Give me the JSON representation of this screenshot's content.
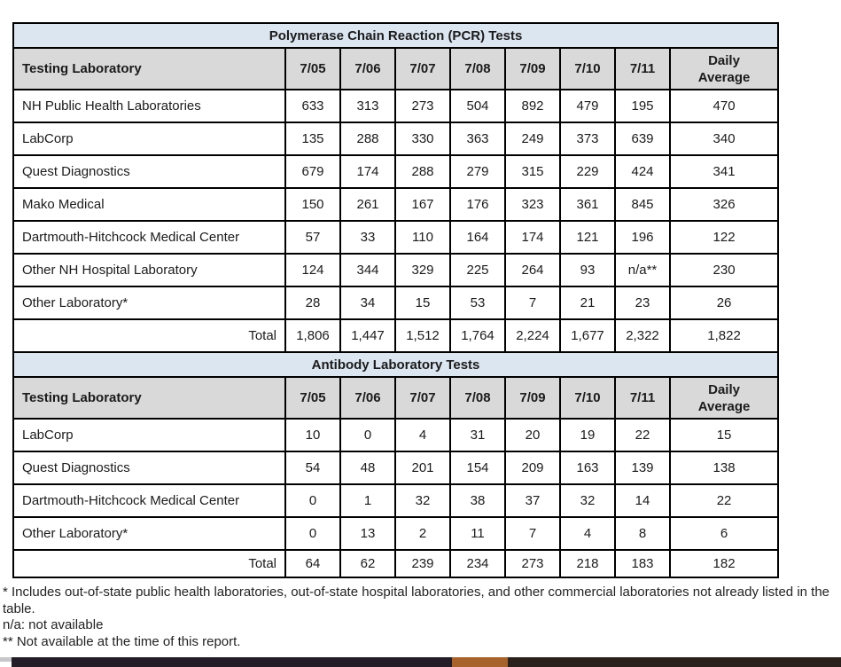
{
  "colors": {
    "title_row_bg": "#dce6f1",
    "header_row_bg": "#d9d9d9",
    "table_border": "#000000",
    "bar_dark_left": "#241c26",
    "bar_accent_orange": "#a8622c",
    "bar_dark_right": "#2a211c"
  },
  "tables": [
    {
      "title": "Polymerase Chain Reaction (PCR) Tests",
      "header": {
        "label": "Testing Laboratory",
        "dates": [
          "7/05",
          "7/06",
          "7/07",
          "7/08",
          "7/09",
          "7/10",
          "7/11"
        ],
        "average": "Daily\nAverage"
      },
      "rows": [
        {
          "label": "NH Public Health Laboratories",
          "values": [
            "633",
            "313",
            "273",
            "504",
            "892",
            "479",
            "195",
            "470"
          ]
        },
        {
          "label": "LabCorp",
          "values": [
            "135",
            "288",
            "330",
            "363",
            "249",
            "373",
            "639",
            "340"
          ]
        },
        {
          "label": "Quest Diagnostics",
          "values": [
            "679",
            "174",
            "288",
            "279",
            "315",
            "229",
            "424",
            "341"
          ]
        },
        {
          "label": "Mako Medical",
          "values": [
            "150",
            "261",
            "167",
            "176",
            "323",
            "361",
            "845",
            "326"
          ]
        },
        {
          "label": "Dartmouth-Hitchcock Medical Center",
          "values": [
            "57",
            "33",
            "110",
            "164",
            "174",
            "121",
            "196",
            "122"
          ]
        },
        {
          "label": "Other NH Hospital Laboratory",
          "values": [
            "124",
            "344",
            "329",
            "225",
            "264",
            "93",
            "n/a**",
            "230"
          ]
        },
        {
          "label": "Other Laboratory*",
          "values": [
            "28",
            "34",
            "15",
            "53",
            "7",
            "21",
            "23",
            "26"
          ]
        }
      ],
      "total": {
        "label": "Total",
        "values": [
          "1,806",
          "1,447",
          "1,512",
          "1,764",
          "2,224",
          "1,677",
          "2,322",
          "1,822"
        ]
      }
    },
    {
      "title": "Antibody Laboratory Tests",
      "header": {
        "label": "Testing Laboratory",
        "dates": [
          "7/05",
          "7/06",
          "7/07",
          "7/08",
          "7/09",
          "7/10",
          "7/11"
        ],
        "average": "Daily\nAverage"
      },
      "rows": [
        {
          "label": "LabCorp",
          "values": [
            "10",
            "0",
            "4",
            "31",
            "20",
            "19",
            "22",
            "15"
          ]
        },
        {
          "label": "Quest Diagnostics",
          "values": [
            "54",
            "48",
            "201",
            "154",
            "209",
            "163",
            "139",
            "138"
          ]
        },
        {
          "label": "Dartmouth-Hitchcock Medical Center",
          "values": [
            "0",
            "1",
            "32",
            "38",
            "37",
            "32",
            "14",
            "22"
          ]
        },
        {
          "label": "Other Laboratory*",
          "values": [
            "0",
            "13",
            "2",
            "11",
            "7",
            "4",
            "8",
            "6"
          ]
        }
      ],
      "total": {
        "label": "Total",
        "values": [
          "64",
          "62",
          "239",
          "234",
          "273",
          "218",
          "183",
          "182"
        ]
      }
    }
  ],
  "footnotes": [
    "* Includes out-of-state public health laboratories, out-of-state hospital laboratories, and other commercial laboratories not already listed in the table.",
    "n/a: not available",
    "** Not available at the time of this report."
  ]
}
